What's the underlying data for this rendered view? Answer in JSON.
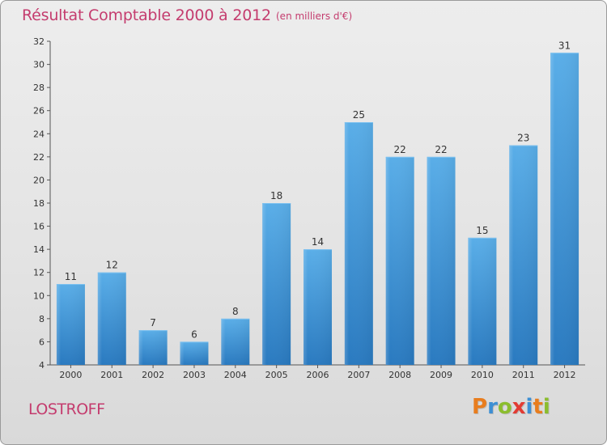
{
  "header": {
    "title": "Résultat Comptable 2000 à 2012",
    "subtitle": "(en milliers d'€)"
  },
  "footer": {
    "commune": "LOSTROFF",
    "logo_text": "Proxiti",
    "logo_letters": [
      {
        "ch": "P",
        "color": "#e87d1e"
      },
      {
        "ch": "r",
        "color": "#3d8fd4"
      },
      {
        "ch": "o",
        "color": "#8bbd2e"
      },
      {
        "ch": "x",
        "color": "#e23b33"
      },
      {
        "ch": "i",
        "color": "#3d8fd4"
      },
      {
        "ch": "t",
        "color": "#e87d1e"
      },
      {
        "ch": "i",
        "color": "#8bbd2e"
      }
    ]
  },
  "colors": {
    "bar_top": "#5aaee8",
    "bar_bottom": "#2a7ac0",
    "title": "#c43c6e"
  },
  "chart_data": {
    "type": "bar",
    "title": "Résultat Comptable 2000 à 2012",
    "subtitle": "(en milliers d'€)",
    "categories": [
      "2000",
      "2001",
      "2002",
      "2003",
      "2004",
      "2005",
      "2006",
      "2007",
      "2008",
      "2009",
      "2010",
      "2011",
      "2012"
    ],
    "values": [
      11,
      12,
      7,
      6,
      8,
      18,
      14,
      25,
      22,
      22,
      15,
      23,
      31
    ],
    "ylim": [
      4,
      32
    ],
    "yticks": [
      4,
      6,
      8,
      10,
      12,
      14,
      16,
      18,
      20,
      22,
      24,
      26,
      28,
      30,
      32
    ],
    "grid": false,
    "data_labels": true
  }
}
